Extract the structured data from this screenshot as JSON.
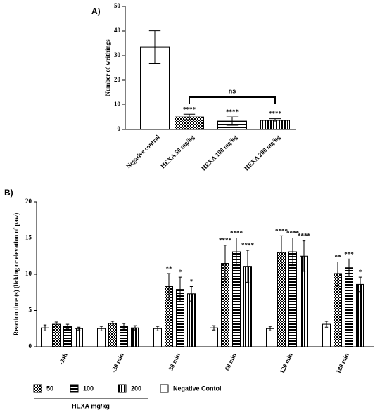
{
  "chart_data": [
    {
      "type": "bar",
      "panel_label": "A)",
      "y_label": "Number of writhings",
      "categories": [
        "Negative control",
        "HEXA 50 mg/kg",
        "HEXA 100 mg/kg",
        "HEXA 200 mg/kg"
      ],
      "values": [
        33.4,
        5.1,
        3.4,
        3.7
      ],
      "errors": [
        6.7,
        1.1,
        1.7,
        0.7
      ],
      "patterns": [
        "none",
        "checker",
        "horizontal",
        "vertical"
      ],
      "colors": [
        "#ffffff",
        "#000000",
        "#000000",
        "#000000"
      ],
      "value_annotations": [
        null,
        "****",
        "****",
        "****"
      ],
      "bracket_label": "ns",
      "ylim": [
        0,
        50
      ],
      "yticks": [
        0,
        10,
        20,
        30,
        40,
        50
      ]
    },
    {
      "type": "grouped_bar",
      "panel_label": "B)",
      "y_label": "Reaction time (s) (licking or elevation of paw)",
      "categories": [
        "-24h",
        "-30 min",
        "30 min",
        "60 min",
        "120 min",
        "180 min"
      ],
      "series": [
        {
          "name": "Negative Contol",
          "color": "#ffffff",
          "pattern": "none",
          "values": [
            2.6,
            2.5,
            2.5,
            2.6,
            2.5,
            3.1
          ],
          "errors": [
            0.4,
            0.3,
            0.3,
            0.3,
            0.3,
            0.4
          ],
          "value_annotations": [
            null,
            null,
            null,
            null,
            null,
            null
          ]
        },
        {
          "name": "50",
          "color": "#000000",
          "pattern": "checker",
          "values": [
            3.1,
            3.2,
            8.3,
            11.5,
            13.0,
            10.1
          ],
          "errors": [
            0.3,
            0.3,
            1.8,
            2.5,
            2.3,
            1.6
          ],
          "value_annotations": [
            null,
            null,
            "**",
            "****",
            "****",
            "**"
          ]
        },
        {
          "name": "100",
          "color": "#000000",
          "pattern": "horizontal",
          "values": [
            2.8,
            2.8,
            7.9,
            13.1,
            13.1,
            10.9
          ],
          "errors": [
            0.3,
            0.4,
            1.7,
            1.9,
            1.9,
            1.2
          ],
          "value_annotations": [
            null,
            null,
            "*",
            "****",
            "****",
            "***"
          ]
        },
        {
          "name": "200",
          "color": "#000000",
          "pattern": "vertical",
          "values": [
            2.5,
            2.6,
            7.3,
            11.1,
            12.5,
            8.6
          ],
          "errors": [
            0.2,
            0.3,
            1.0,
            2.2,
            2.1,
            1.0
          ],
          "value_annotations": [
            null,
            null,
            "*",
            "****",
            "****",
            "*"
          ]
        }
      ],
      "legend_group_label": "HEXA mg/kg",
      "ylim": [
        0,
        20
      ],
      "yticks": [
        0,
        5,
        10,
        15,
        20
      ]
    }
  ]
}
